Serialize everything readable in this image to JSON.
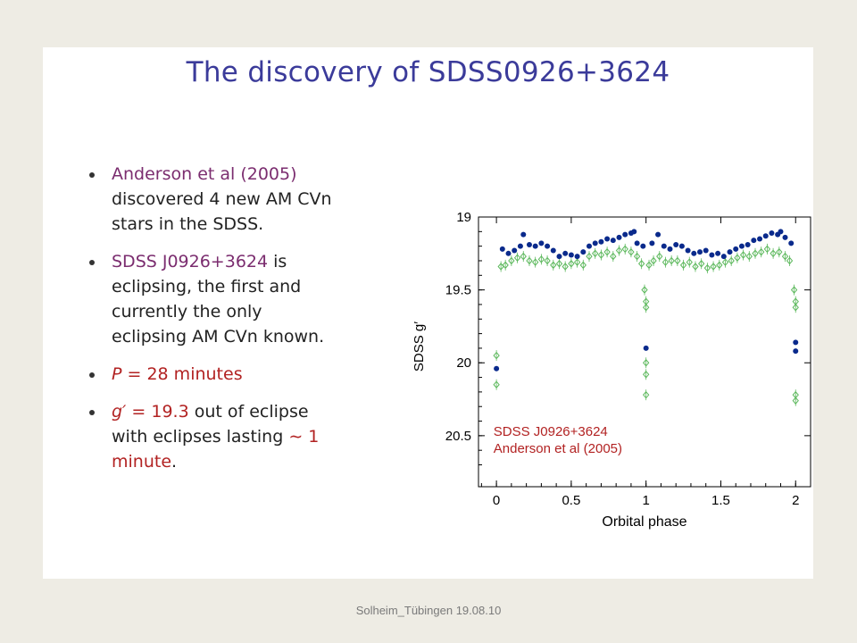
{
  "slide": {
    "title": "The discovery of SDSS0926+3624",
    "bullets": [
      {
        "segments": [
          {
            "text": "Anderson et al (2005)",
            "style": "purple"
          },
          {
            "text": " discovered 4 new AM CVn stars in the SDSS.",
            "style": "plain"
          }
        ]
      },
      {
        "segments": [
          {
            "text": "SDSS J0926+3624",
            "style": "purple"
          },
          {
            "text": " is eclipsing, the first and currently the only eclipsing AM CVn known.",
            "style": "plain"
          }
        ]
      },
      {
        "segments": [
          {
            "text": "P",
            "style": "red-italic"
          },
          {
            "text": " = 28 minutes",
            "style": "red"
          }
        ]
      },
      {
        "segments": [
          {
            "text": "g′",
            "style": "red-italic"
          },
          {
            "text": " = 19.3",
            "style": "red"
          },
          {
            "text": " out of eclipse with eclipses lasting ",
            "style": "plain"
          },
          {
            "text": "∼ 1 minute",
            "style": "red"
          },
          {
            "text": ".",
            "style": "plain"
          }
        ]
      }
    ]
  },
  "footer": "Solheim_Tübingen 19.08.10",
  "colors": {
    "title": "#3B3B9A",
    "purple": "#7B2D6F",
    "red": "#B22222",
    "series_blue": "#0A2A8C",
    "series_green": "#5CB85C",
    "annotation": "#B22222"
  },
  "chart_data": {
    "type": "scatter",
    "xlabel": "Orbital phase",
    "ylabel": "SDSS g′",
    "xlim": [
      -0.12,
      2.1
    ],
    "ylim": [
      19,
      20.85
    ],
    "y_inverted": true,
    "xticks": [
      0,
      0.5,
      1,
      1.5,
      2
    ],
    "xtick_labels": [
      "0",
      "0.5",
      "1",
      "1.5",
      "2"
    ],
    "yticks": [
      19,
      19.5,
      20,
      20.5
    ],
    "ytick_labels": [
      "19",
      "19.5",
      "20",
      "20.5"
    ],
    "annotation": [
      "SDSS J0926+3624",
      "Anderson et al (2005)"
    ],
    "annotation_location": "bottom-left",
    "series": [
      {
        "marker": "filled-circle",
        "color": "#0A2A8C",
        "x": [
          0,
          0.04,
          0.08,
          0.12,
          0.16,
          0.18,
          0.22,
          0.26,
          0.3,
          0.34,
          0.38,
          0.42,
          0.46,
          0.5,
          0.54,
          0.58,
          0.62,
          0.66,
          0.7,
          0.74,
          0.78,
          0.82,
          0.86,
          0.9,
          0.92,
          0.94,
          0.98,
          1.0,
          1.04,
          1.08,
          1.12,
          1.16,
          1.2,
          1.24,
          1.28,
          1.32,
          1.36,
          1.4,
          1.44,
          1.48,
          1.52,
          1.56,
          1.6,
          1.64,
          1.68,
          1.72,
          1.76,
          1.8,
          1.84,
          1.88,
          1.9,
          1.93,
          1.97,
          2.0,
          2.0
        ],
        "y": [
          20.04,
          19.22,
          19.25,
          19.23,
          19.2,
          19.12,
          19.19,
          19.2,
          19.18,
          19.2,
          19.23,
          19.27,
          19.25,
          19.26,
          19.27,
          19.24,
          19.2,
          19.18,
          19.17,
          19.15,
          19.16,
          19.14,
          19.12,
          19.11,
          19.1,
          19.18,
          19.2,
          19.9,
          19.18,
          19.12,
          19.2,
          19.22,
          19.19,
          19.2,
          19.23,
          19.25,
          19.24,
          19.23,
          19.26,
          19.25,
          19.27,
          19.24,
          19.22,
          19.2,
          19.19,
          19.16,
          19.15,
          19.13,
          19.11,
          19.12,
          19.1,
          19.14,
          19.18,
          19.86,
          19.92
        ]
      },
      {
        "marker": "open-diamond",
        "color": "#5CB85C",
        "x": [
          0,
          0.0,
          0.03,
          0.06,
          0.1,
          0.14,
          0.18,
          0.22,
          0.26,
          0.3,
          0.34,
          0.38,
          0.42,
          0.46,
          0.5,
          0.54,
          0.58,
          0.62,
          0.66,
          0.7,
          0.74,
          0.78,
          0.82,
          0.86,
          0.9,
          0.94,
          0.97,
          0.99,
          1.0,
          1.0,
          1.0,
          1.0,
          1.0,
          1.02,
          1.05,
          1.09,
          1.13,
          1.17,
          1.21,
          1.25,
          1.29,
          1.33,
          1.37,
          1.41,
          1.45,
          1.49,
          1.53,
          1.57,
          1.61,
          1.65,
          1.69,
          1.73,
          1.77,
          1.81,
          1.85,
          1.89,
          1.93,
          1.96,
          1.99,
          2.0,
          2.0,
          2.0,
          2.0
        ],
        "y": [
          19.95,
          20.15,
          19.34,
          19.33,
          19.3,
          19.28,
          19.27,
          19.3,
          19.31,
          19.29,
          19.3,
          19.33,
          19.32,
          19.34,
          19.32,
          19.31,
          19.33,
          19.27,
          19.25,
          19.26,
          19.24,
          19.27,
          19.23,
          19.22,
          19.24,
          19.27,
          19.32,
          19.5,
          19.58,
          19.62,
          20.0,
          20.08,
          20.22,
          19.33,
          19.3,
          19.27,
          19.31,
          19.3,
          19.3,
          19.33,
          19.31,
          19.34,
          19.32,
          19.35,
          19.34,
          19.33,
          19.31,
          19.3,
          19.28,
          19.26,
          19.27,
          19.25,
          19.24,
          19.22,
          19.25,
          19.24,
          19.27,
          19.3,
          19.5,
          19.58,
          19.62,
          20.22,
          20.26
        ]
      }
    ]
  }
}
